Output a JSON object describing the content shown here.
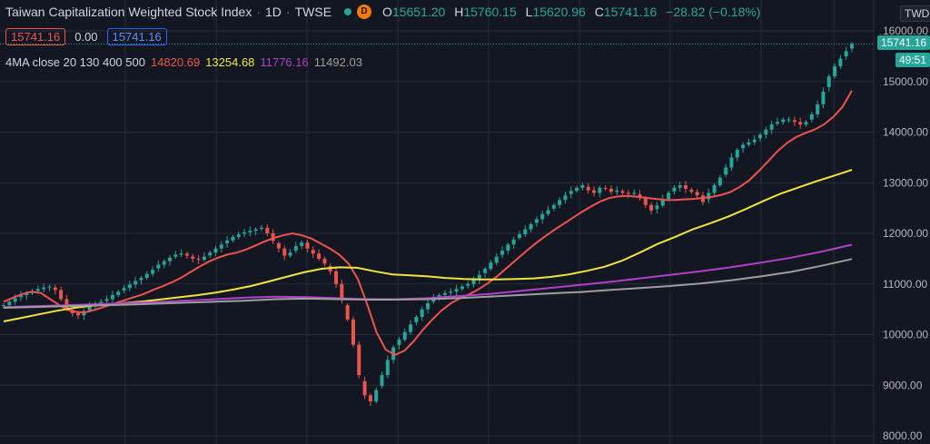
{
  "header": {
    "title": "Taiwan Capitalization Weighted Stock Index",
    "interval": "1D",
    "exchange": "TWSE",
    "badge": "D",
    "ohlc": {
      "o_label": "O",
      "o": "15651.20",
      "h_label": "H",
      "h": "15760.15",
      "l_label": "L",
      "l": "15620.96",
      "c_label": "C",
      "c": "15741.16",
      "change": "−28.82 (−0.18%)"
    }
  },
  "price_boxes": {
    "bid": "15741.16",
    "spread": "0.00",
    "ask": "15741.16"
  },
  "ma_legend": {
    "label": "4MA close 20 130 400 500",
    "values": [
      "14820.69",
      "13254.68",
      "11776.16",
      "11492.03"
    ],
    "colors": [
      "#ef5350",
      "#f0e442",
      "#b040c8",
      "#9e9e9e"
    ]
  },
  "axis": {
    "currency": "TWD",
    "last_price": "15741.16",
    "countdown": "49:51",
    "ticks": [
      "16000.00",
      "15000.00",
      "14000.00",
      "13000.00",
      "12000.00",
      "11000.00",
      "10000.00",
      "9000.00",
      "8000.00"
    ]
  },
  "colors": {
    "up": "#26a69a",
    "down": "#ef5350",
    "background": "#131722",
    "grid": "#2a2e39"
  },
  "chart_data": {
    "type": "line",
    "y_range": [
      8000,
      16000
    ],
    "close": [
      10580,
      10650,
      10720,
      10780,
      10820,
      10850,
      10900,
      10930,
      10950,
      10880,
      10700,
      10520,
      10420,
      10380,
      10450,
      10560,
      10620,
      10650,
      10700,
      10780,
      10850,
      10920,
      10990,
      11060,
      11120,
      11200,
      11280,
      11380,
      11450,
      11520,
      11580,
      11600,
      11560,
      11500,
      11480,
      11540,
      11620,
      11700,
      11780,
      11860,
      11930,
      11980,
      12020,
      12050,
      12080,
      12110,
      12000,
      11850,
      11700,
      11560,
      11620,
      11750,
      11820,
      11700,
      11600,
      11500,
      11400,
      11250,
      11000,
      10700,
      10300,
      9800,
      9200,
      8800,
      8680,
      8900,
      9200,
      9500,
      9750,
      9900,
      10050,
      10200,
      10350,
      10500,
      10620,
      10720,
      10780,
      10820,
      10850,
      10900,
      10950,
      11000,
      11080,
      11180,
      11300,
      11420,
      11540,
      11660,
      11780,
      11880,
      11980,
      12080,
      12180,
      12280,
      12380,
      12460,
      12560,
      12660,
      12750,
      12840,
      12900,
      12950,
      12850,
      12800,
      12900,
      12880,
      12820,
      12850,
      12800,
      12780,
      12800,
      12700,
      12560,
      12450,
      12550,
      12680,
      12800,
      12900,
      12950,
      12880,
      12820,
      12750,
      12620,
      12800,
      12950,
      13100,
      13300,
      13500,
      13650,
      13750,
      13800,
      13850,
      13950,
      14050,
      14150,
      14200,
      14250,
      14250,
      14200,
      14150,
      14200,
      14350,
      14550,
      14800,
      15100,
      15300,
      15450,
      15600,
      15741
    ],
    "series": [
      {
        "values": [
          10650,
          10730,
          10800,
          10850,
          10820,
          10700,
          10580,
          10480,
          10440,
          10450,
          10500,
          10560,
          10620,
          10680,
          10740,
          10800,
          10880,
          10950,
          11030,
          11120,
          11230,
          11340,
          11440,
          11520,
          11580,
          11620,
          11680,
          11760,
          11840,
          11910,
          11960,
          12000,
          11960,
          11900,
          11800,
          11700,
          11580,
          11400,
          11100,
          10600,
          10050,
          9700,
          9600,
          9680,
          9870,
          10100,
          10300,
          10480,
          10620,
          10720,
          10800,
          10900,
          11020,
          11160,
          11320,
          11480,
          11640,
          11790,
          11930,
          12060,
          12180,
          12300,
          12420,
          12530,
          12630,
          12700,
          12730,
          12740,
          12720,
          12700,
          12680,
          12660,
          12660,
          12670,
          12680,
          12700,
          12720,
          12760,
          12820,
          12920,
          13050,
          13230,
          13420,
          13620,
          13780,
          13900,
          13980,
          14050,
          14150,
          14300,
          14500,
          14820
        ]
      },
      {
        "values": [
          10260,
          10330,
          10400,
          10470,
          10530,
          10570,
          10600,
          10630,
          10660,
          10700,
          10740,
          10780,
          10830,
          10890,
          10960,
          11050,
          11140,
          11230,
          11300,
          11330,
          11320,
          11250,
          11190,
          11170,
          11150,
          11120,
          11100,
          11090,
          11090,
          11100,
          11110,
          11140,
          11190,
          11260,
          11340,
          11460,
          11620,
          11790,
          11930,
          12080,
          12200,
          12330,
          12480,
          12640,
          12790,
          12910,
          13030,
          13140,
          13254
        ]
      },
      {
        "values": [
          10540,
          10560,
          10580,
          10600,
          10620,
          10640,
          10670,
          10700,
          10730,
          10750,
          10740,
          10720,
          10700,
          10700,
          10720,
          10760,
          10800,
          10860,
          10920,
          10980,
          11040,
          11110,
          11180,
          11250,
          11330,
          11420,
          11520,
          11640,
          11776
        ]
      },
      {
        "values": [
          10530,
          10545,
          10560,
          10575,
          10590,
          10610,
          10630,
          10650,
          10670,
          10700,
          10710,
          10700,
          10690,
          10690,
          10700,
          10720,
          10750,
          10780,
          10810,
          10840,
          10880,
          10920,
          10960,
          11010,
          11070,
          11150,
          11240,
          11360,
          11492
        ]
      }
    ]
  }
}
